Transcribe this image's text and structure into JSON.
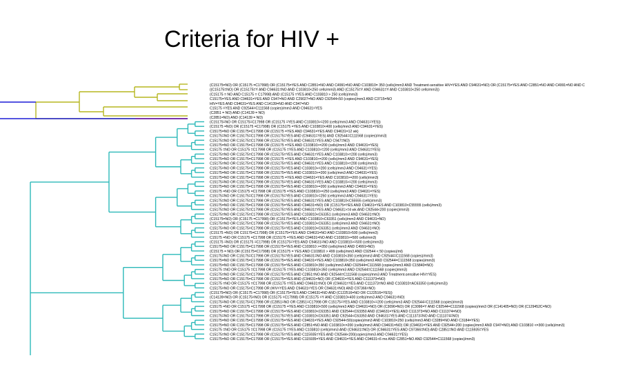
{
  "title": "Criteria for HIV +",
  "colors": {
    "yellow_clade": "#b5b51f",
    "blue_clade": "#1a1ad6",
    "teal_clade": "#2ab8b8",
    "purple_branch": "#7a1aa8"
  },
  "leaves": [
    "(C15175=NO) OR (C15175 =C17998) OR (C15175=YES AND C2851=NO AND C4991=NO AND C103810= 350 (cells)/mm3 AND Treatment-sensitive HIV=YES AND C94631=NO) OR (C15175=YES AND C2851=NO AND C4991=NO AND C",
    "((C15175=NO) OR (C15175=Y AND C94631=NO AND C103810<250 cells/mm3) AND (C15175=Y AND C94631=Y AND C103810<250 cells/mm3))",
    "(C15175 = NO AND C15175 = C17998) AND (C15175 =YES AND C103810 > 250 (cells)/mm3)",
    "C15175=YES AND C94631=YES AND C947=NO AND C29027=NO AND C92544<50 (copies)/mm3 AND C3715=NO",
    "HIV=YES AND C94631=YES AND C14139=NO AND C947=NO",
    "C15175 =YES AND C92544=C111568 (copies)/mm3 AND C94631=YES",
    "(C2851 = NO) AND (C14139 = NO)",
    "(C2851=NO) AND (C14139 = NO)",
    "(C15175=NO OR C15175=C17998 OR (C15175 =YES AND C103810>=200 (cells)/mm3 AND C94631=YES))",
    "(C15175 =NO) OR (C15175 =C17998) OR (C15175 =YES AND C103810<400 (cells)/mm3 AND C94631=YES)",
    "C15175=NO OR C15175=C17998 OR (C15175 =YES AND C94631=YES AND C94631=12 wk)",
    "C15175=NO OR C15175=C17998 OR (C15175=YES AND (C94631=YES) AND C92544=C111568 (copies)/mm3)",
    "C15175=NO OR C15175=C17998 OR (C15175=YES AND C94631=YES AND C947=NO)",
    "C15175=NO OR C15175=C17998 OR (C15175 =YES AND C103810>=200 (cells)/mm3 AND C94631=YES)",
    "C15175 =NO OR C15175 =C17998 OR (C15175 =YES AND C103810>=200 (cells)/mm3 AND C94631=YES)",
    "C15175=NO OR C15175=C17998 OR (C15175=YES AND C94631=YES AND C103810>=200 (cells)/mm3)",
    "C15175=NO OR C15175=C17998 OR (C15175 =YES AND C103810>=200 (cells)/mm3 AND C94631=YES)",
    "C15175=NO OR C15175=C17998 OR (C15175=YES AND C94631=YES AND C103810>=200 (cells)/mm3)",
    "C15175=NO OR C15175=C17998 OR (C15175=YES AND C103810>=200 (cells)/mm3 AND C94631=YES)",
    "C15175=NO OR C15175=C17998 OR (C15175=YES AND C103810>=200 (cells)/mm3 AND C94631=YES)",
    "C15175=NO OR C15175=C17998 OR (C15175 =YES AND C94631=YES AND C103810>=200 (cells)/mm3)",
    "C15175=NO OR C15175=C17998 OR (C15175=YES AND C94631=YES AND C103810>=200 (cells)/mm3)",
    "C15175=NO OR C15175=C17998 OR (C15175=YES AND C103810>=200 (cells)/mm3 AND C94631=YES)",
    "C15175 =NO OR C15175 =C17998 OR (C15175 =YES AND C103810>=250 (cells)/mm3 AND C94631=YES)",
    "C15175=NO OR C15175=C17998 OR (C15175=YES AND C103810>=250 (cells)/mm3 AND C94631=YES)",
    "C15175=NO OR C15175=C17998 OR (C15175=YES AND C94631=YES AND C103810<C55555 (cells)/mm3)",
    "C15175=NO OR C15175=C17998 OR (C15175=YES AND C94631=NO) OR (C15175=YES AND C94631=YES AND C103810<C55555 (cells)/mm3)",
    "C15175=NO OR C15175=C17998 OR (C15175=YES AND C94631=YES AND C94631>=4 wk AND C92544<200 (copies)/mm3)",
    "C15175=NO OR C15175=C17998 OR (C15175=YES AND C103810<C63351 (cells)/mm3 AND C94631=NO)",
    "(C15175=NO) OR (C15175 =C17998) OR (C15175=YES AND C103810<C63351 (cells)/mm3 AND C94631=NO)",
    "C15175=NO OR C15175=C17998 OR (C15175=YES AND C103810<C63351 (cells)/mm3 AND C94631=NO)",
    "C15175=NO OR C15175=C17998 OR (C15175=YES AND C103810<C63351 (cells)/mm3 AND C94631=NO)",
    "(C15175 =NO) OR C15175=C17998) OR (C15175=YES AND C94631=NO AND C103810>500 (cells)/mm3)",
    "C15175 =NO OR C15175 =C17998 OR (C15175 =YES AND C94631=NO AND C103810>=500 cells/mm3)",
    "(C15175 =NO) OR (C15175 =C17998) OR (C15175=YES AND C94631=NO AND C103810>=500 (cells)/mm3))",
    "C15175=NO OR C15175=C17998 OR (C15175=YES AND C103810 >=350 (cells)/mm3 AND C4991=NO)",
    "(C15175 = NO) OR (C15175=C17998) OR (C15175 = YES AND C103810 > 499 (cells)/mm3 AND C92544 < 50 (copies)/ml)",
    "C15175=NO OR C15175=C17998 OR (C15175=YES AND C94631=NO AND C103810<350 (cells)/mm3 AND C92544=C111568 (copies)/mm3)",
    "C15175=NO OR C15175=C17998 OR (C15175=YES AND C94631=YES AND C103810<350 (cells)/mm3 AND C92544=C111568 (copies)/mm3)",
    "C15175=NO OR C15175=C17998 OR (C15175=YES AND C103810<350 (cells)/mm3 AND C92544=C111568 (copies)/mm3 AND C15840=NO)",
    "C15175 =NO OR C15175 =C17998 OR (C15175 =YES AND C103810<350 (cells)/mm3 AND C92544=C111568 (copies)/mm3)",
    "C15175=NO OR C15175=C17998 OR (C15175=YES AND C2851=NO AND C92544=C111568 (copies)/mm3 AND Treatment-sensitive HIV=YES)",
    "C15175=NO OR C15175=C17998 OR (C15175=YES AND (C94631=NO) OR (C94631=YES AND C111373=NO)",
    "C15175 =NO OR C15175 =C17998 OR (C15175 =YES AND C94631=NO) OR (C94631=YES AND C111373=NO AND C103810=AC63350 (cells)/mm3))",
    "C15175=NO OR C15175=C17998 OR (HIV=YES AND C94631=YES OR C94631=NO) AND C97366=NO)",
    "(C15175=NO) OR (C15175 =C17998) OR (C15175=YES AND C94631=NO AND (C122516=NO OR C122516=YES))",
    "(C14139=NO) OR (C15175=NO) OR (C15175 =C17998) OR (C15175 =Y AND C103810<400 (cells)/mm3 AND C94631=NO)",
    "C15175=NO OR C15175=C17998 OR (C2851=NO OR C2851=C17998 OR C15175=YES AND C103810<=200 (cells)/mm3 AND C92544=C111568 (copies)/mm3)",
    "C15175 =NO OR C15175 =C17998 OR (C15175 =YES AND C103810<500 (cells)/mm3 AND C94631=NO) OR (C3096=NO) OR (C3096=Y AND C92544=C111568 (copies)/mm3 OR (C141405=NO) OR (C129452C=NO)",
    "C15175=NO OR C15175=C17998 OR (C15175=YES AND C103810<C63351 AND C92544<C63350 AND (C94631=YES) AND C111373=NO AND C111374=NO)",
    "C15175=NO OR C15175=C17998 OR (C15175=YES AND C103810<C63351 AND C92544<C63350 AND C94631=YES AND C111373=NO AND C111374=NO)",
    "C15175=NO OR C15175=C17998 OR (C15175=YES AND C94631=YES AND C92544<50(copies)/mm3 AND C103810<250 (cells)/mm3 AND C3289=NO AND C3184=YES)",
    "C15175=NO OR C15175=C17998 OR (C15175=YES AND C2851=NO AND C103810<=200 (cells)/mm3 AND C94631=NO) OR (C94631=YES AND C92544<200 (copies)/mm3 AND C947=NO) AND C103810 <=300 (cells)/mm3)",
    "C15175 =NO OR C15175 =C17998 OR (C15175 =YES AND C103810 (cells)/mm3 AND (C94631=NO) OR (C94631=YES AND C97366=NO) AND C2851=NO AND C115935=YES",
    "C15175=NO OR C15175=C17998 OR (C15175=YES AND C115935=YES AND C92544<200(copies)/mm3 AND C94631=YES)",
    "C15175=NO OR C15175=C17998 OR (C15175=YES AND C115935=YES AND C94631=YES AND C94631<6 mo AND C2851=NO AND C92544=C111568 (copies)/mm3)"
  ]
}
